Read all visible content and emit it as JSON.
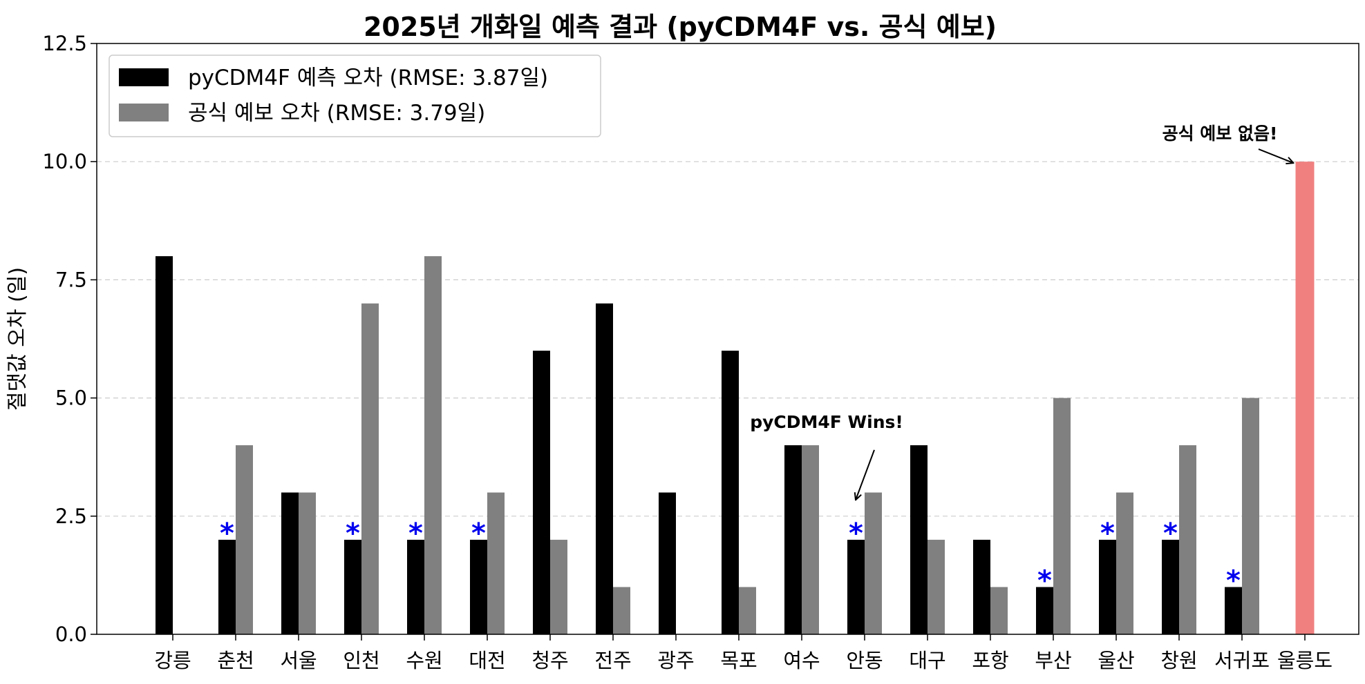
{
  "chart_data": {
    "type": "bar",
    "title": "2025년 개화일 예측 결과 (pyCDM4F vs. 공식 예보)",
    "xlabel": "",
    "ylabel": "절댓값 오차 (일)",
    "ylim": [
      0,
      12.5
    ],
    "yticks": [
      "0.0",
      "2.5",
      "5.0",
      "7.5",
      "10.0",
      "12.5"
    ],
    "grid": "y-dashed",
    "legend_position": "top-left",
    "categories": [
      "강릉",
      "춘천",
      "서울",
      "인천",
      "수원",
      "대전",
      "청주",
      "전주",
      "광주",
      "목포",
      "여수",
      "안동",
      "대구",
      "포항",
      "부산",
      "울산",
      "창원",
      "서귀포",
      "울릉도"
    ],
    "series": [
      {
        "name": "pyCDM4F 예측 오차 (RMSE: 3.87일)",
        "color": "#000000",
        "values": [
          8,
          2,
          3,
          2,
          2,
          2,
          6,
          7,
          3,
          6,
          4,
          2,
          4,
          2,
          1,
          2,
          2,
          1,
          null
        ]
      },
      {
        "name": "공식 예보 오차 (RMSE: 3.79일)",
        "color": "#808080",
        "values": [
          0,
          4,
          3,
          7,
          8,
          3,
          2,
          1,
          0,
          1,
          4,
          3,
          2,
          1,
          5,
          3,
          4,
          5,
          null
        ]
      }
    ],
    "special_bar": {
      "category": "울릉도",
      "value": 10,
      "color": "#f08080"
    },
    "win_markers": {
      "symbol": "*",
      "color": "#0000ee",
      "categories": [
        "춘천",
        "인천",
        "수원",
        "대전",
        "안동",
        "부산",
        "울산",
        "창원",
        "서귀포"
      ]
    },
    "annotations": [
      {
        "text": "공식 예보 없음!",
        "points_to": {
          "category": "울릉도",
          "y": 10
        },
        "text_at": {
          "category": "서귀포",
          "y": 10.6
        }
      },
      {
        "text": "pyCDM4F Wins!",
        "points_to": {
          "category": "안동",
          "y": 2.9
        },
        "text_at": {
          "category": "안동",
          "y": 4.5
        }
      }
    ]
  }
}
